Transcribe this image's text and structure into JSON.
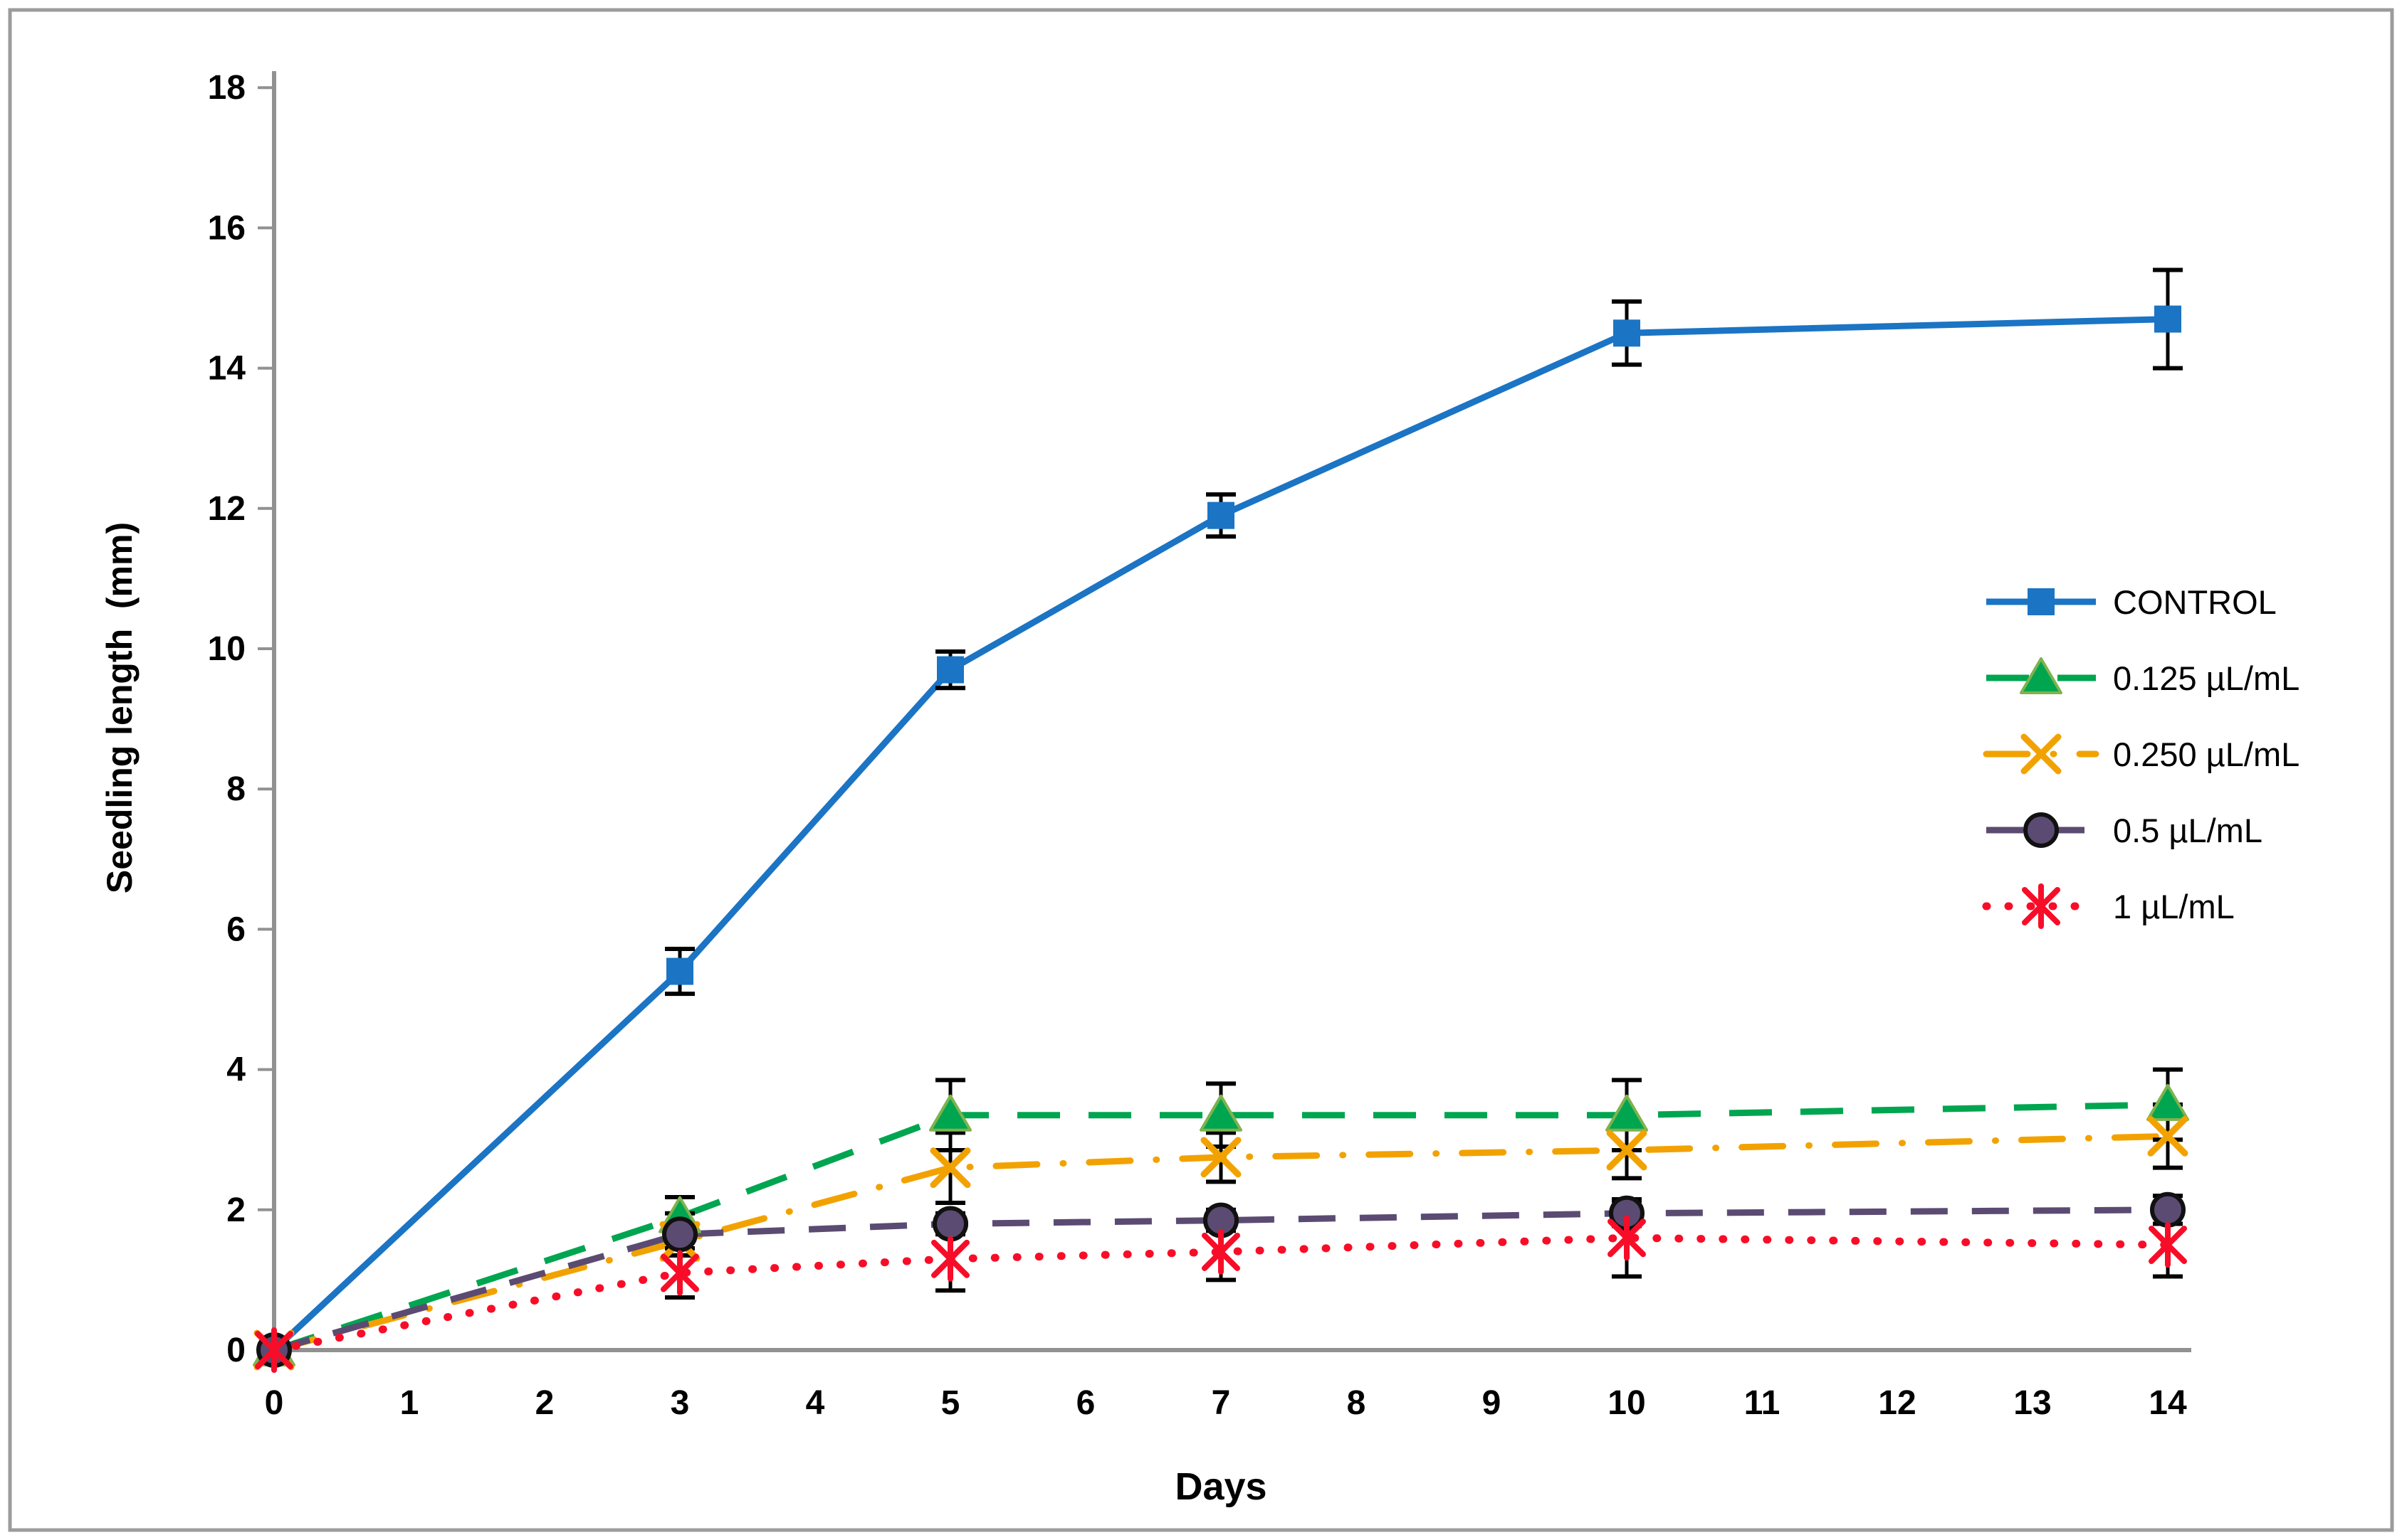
{
  "frame": {
    "border_color": "#9C9C9C",
    "background": "#FFFFFF"
  },
  "chart_data": {
    "type": "line",
    "title": "",
    "xlabel": "Days",
    "ylabel": "Seedling length  (mm)",
    "x_ticks": [
      0,
      1,
      2,
      3,
      4,
      5,
      6,
      7,
      8,
      9,
      10,
      11,
      12,
      13,
      14
    ],
    "y_ticks": [
      0,
      2,
      4,
      6,
      8,
      10,
      12,
      14,
      16,
      18
    ],
    "xlim": [
      0,
      14
    ],
    "ylim": [
      0,
      18
    ],
    "grid": false,
    "legend_position": "middle-right",
    "axis_color": "#919191",
    "error_bar_color": "#000000",
    "text_color": "#000000",
    "days": [
      0,
      3,
      5,
      7,
      10,
      14
    ],
    "series": [
      {
        "name": "CONTROL",
        "color": "#1B74C4",
        "line_style": "solid",
        "marker": "square",
        "values": [
          0,
          5.4,
          9.7,
          11.9,
          14.5,
          14.7
        ],
        "errors": [
          0,
          0.32,
          0.26,
          0.3,
          0.45,
          0.7
        ]
      },
      {
        "name": "0.125 µL/mL",
        "color": "#00A550",
        "line_style": "long-dash",
        "marker": "triangle",
        "marker_edge": "#7FB24E",
        "values": [
          0,
          1.9,
          3.35,
          3.35,
          3.35,
          3.5
        ],
        "errors": [
          0,
          0.28,
          0.5,
          0.45,
          0.5,
          0.5
        ]
      },
      {
        "name": "0.250 µL/mL",
        "color": "#F2A200",
        "line_style": "dash-dot",
        "marker": "x",
        "values": [
          0,
          1.55,
          2.6,
          2.75,
          2.85,
          3.05
        ],
        "errors": [
          0,
          0.2,
          0.5,
          0.35,
          0.4,
          0.45
        ]
      },
      {
        "name": "0.5 µL/mL",
        "color": "#5B4B72",
        "line_style": "dash",
        "marker": "circle",
        "marker_edge": "#111111",
        "values": [
          0,
          1.65,
          1.8,
          1.85,
          1.95,
          2.0
        ],
        "errors": [
          0,
          0.3,
          0.15,
          0.15,
          0.18,
          0.2
        ]
      },
      {
        "name": "1 µL/mL",
        "color": "#F80D28",
        "line_style": "dot",
        "marker": "asterisk",
        "values": [
          0,
          1.1,
          1.3,
          1.4,
          1.6,
          1.5
        ],
        "errors": [
          0,
          0.35,
          0.45,
          0.4,
          0.55,
          0.45
        ]
      }
    ]
  }
}
